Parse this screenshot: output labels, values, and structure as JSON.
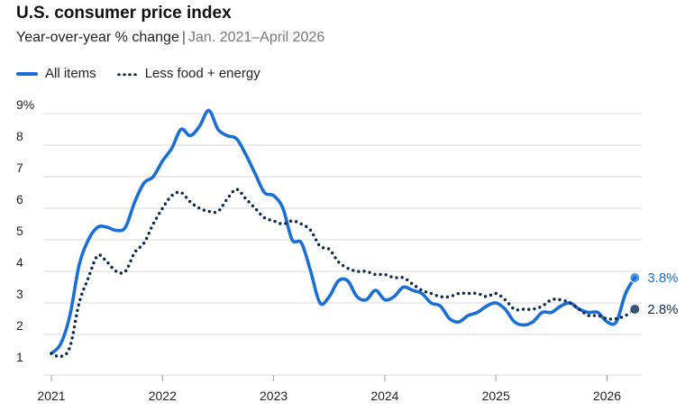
{
  "header": {
    "title": "U.S. consumer price index",
    "subtitle_main": "Year-over-year % change",
    "subtitle_sep": "|",
    "subtitle_range": "Jan. 2021–April 2026"
  },
  "colors": {
    "all_items": "#1a6fd6",
    "core": "#0d2a52",
    "grid": "#d9d9d9",
    "text": "#222222"
  },
  "chart_data": {
    "type": "line",
    "x_label": "",
    "y_label": "",
    "ylim": [
      1,
      9
    ],
    "y_ticks": [
      "1",
      "2",
      "3",
      "4",
      "5",
      "6",
      "7",
      "8",
      "9%"
    ],
    "x_ticks": [
      "2021",
      "2022",
      "2023",
      "2024",
      "2025",
      "2026"
    ],
    "grid": true,
    "legend_position": "top-left",
    "series": [
      {
        "name": "All items",
        "style": "solid",
        "end_label": "3.8%",
        "points": [
          [
            "2021-01",
            1.4
          ],
          [
            "2021-02",
            1.7
          ],
          [
            "2021-03",
            2.6
          ],
          [
            "2021-04",
            4.2
          ],
          [
            "2021-05",
            5.0
          ],
          [
            "2021-06",
            5.4
          ],
          [
            "2021-07",
            5.4
          ],
          [
            "2021-08",
            5.3
          ],
          [
            "2021-09",
            5.4
          ],
          [
            "2021-10",
            6.2
          ],
          [
            "2021-11",
            6.8
          ],
          [
            "2021-12",
            7.0
          ],
          [
            "2022-01",
            7.5
          ],
          [
            "2022-02",
            7.9
          ],
          [
            "2022-03",
            8.5
          ],
          [
            "2022-04",
            8.3
          ],
          [
            "2022-05",
            8.6
          ],
          [
            "2022-06",
            9.1
          ],
          [
            "2022-07",
            8.5
          ],
          [
            "2022-08",
            8.3
          ],
          [
            "2022-09",
            8.2
          ],
          [
            "2022-10",
            7.7
          ],
          [
            "2022-11",
            7.1
          ],
          [
            "2022-12",
            6.5
          ],
          [
            "2023-01",
            6.4
          ],
          [
            "2023-02",
            6.0
          ],
          [
            "2023-03",
            5.0
          ],
          [
            "2023-04",
            4.9
          ],
          [
            "2023-05",
            4.0
          ],
          [
            "2023-06",
            3.0
          ],
          [
            "2023-07",
            3.2
          ],
          [
            "2023-08",
            3.7
          ],
          [
            "2023-09",
            3.7
          ],
          [
            "2023-10",
            3.2
          ],
          [
            "2023-11",
            3.1
          ],
          [
            "2023-12",
            3.4
          ],
          [
            "2024-01",
            3.1
          ],
          [
            "2024-02",
            3.2
          ],
          [
            "2024-03",
            3.5
          ],
          [
            "2024-04",
            3.4
          ],
          [
            "2024-05",
            3.3
          ],
          [
            "2024-06",
            3.0
          ],
          [
            "2024-07",
            2.9
          ],
          [
            "2024-08",
            2.5
          ],
          [
            "2024-09",
            2.4
          ],
          [
            "2024-10",
            2.6
          ],
          [
            "2024-11",
            2.7
          ],
          [
            "2024-12",
            2.9
          ],
          [
            "2025-01",
            3.0
          ],
          [
            "2025-02",
            2.8
          ],
          [
            "2025-03",
            2.4
          ],
          [
            "2025-04",
            2.3
          ],
          [
            "2025-05",
            2.4
          ],
          [
            "2025-06",
            2.7
          ],
          [
            "2025-07",
            2.7
          ],
          [
            "2025-08",
            2.9
          ],
          [
            "2025-09",
            3.0
          ],
          [
            "2025-10",
            2.8
          ],
          [
            "2025-11",
            2.7
          ],
          [
            "2025-12",
            2.7
          ],
          [
            "2026-01",
            2.4
          ],
          [
            "2026-02",
            2.4
          ],
          [
            "2026-03",
            3.3
          ],
          [
            "2026-04",
            3.8
          ]
        ]
      },
      {
        "name": "Less food + energy",
        "style": "dotted",
        "end_label": "2.8%",
        "points": [
          [
            "2021-01",
            1.4
          ],
          [
            "2021-02",
            1.3
          ],
          [
            "2021-03",
            1.6
          ],
          [
            "2021-04",
            3.0
          ],
          [
            "2021-05",
            3.8
          ],
          [
            "2021-06",
            4.5
          ],
          [
            "2021-07",
            4.3
          ],
          [
            "2021-08",
            4.0
          ],
          [
            "2021-09",
            4.0
          ],
          [
            "2021-10",
            4.6
          ],
          [
            "2021-11",
            4.9
          ],
          [
            "2021-12",
            5.5
          ],
          [
            "2022-01",
            6.0
          ],
          [
            "2022-02",
            6.4
          ],
          [
            "2022-03",
            6.5
          ],
          [
            "2022-04",
            6.2
          ],
          [
            "2022-05",
            6.0
          ],
          [
            "2022-06",
            5.9
          ],
          [
            "2022-07",
            5.9
          ],
          [
            "2022-08",
            6.3
          ],
          [
            "2022-09",
            6.6
          ],
          [
            "2022-10",
            6.3
          ],
          [
            "2022-11",
            6.0
          ],
          [
            "2022-12",
            5.7
          ],
          [
            "2023-01",
            5.6
          ],
          [
            "2023-02",
            5.5
          ],
          [
            "2023-03",
            5.6
          ],
          [
            "2023-04",
            5.5
          ],
          [
            "2023-05",
            5.3
          ],
          [
            "2023-06",
            4.8
          ],
          [
            "2023-07",
            4.7
          ],
          [
            "2023-08",
            4.3
          ],
          [
            "2023-09",
            4.1
          ],
          [
            "2023-10",
            4.0
          ],
          [
            "2023-11",
            4.0
          ],
          [
            "2023-12",
            3.9
          ],
          [
            "2024-01",
            3.9
          ],
          [
            "2024-02",
            3.8
          ],
          [
            "2024-03",
            3.8
          ],
          [
            "2024-04",
            3.6
          ],
          [
            "2024-05",
            3.4
          ],
          [
            "2024-06",
            3.3
          ],
          [
            "2024-07",
            3.2
          ],
          [
            "2024-08",
            3.2
          ],
          [
            "2024-09",
            3.3
          ],
          [
            "2024-10",
            3.3
          ],
          [
            "2024-11",
            3.3
          ],
          [
            "2024-12",
            3.2
          ],
          [
            "2025-01",
            3.3
          ],
          [
            "2025-02",
            3.1
          ],
          [
            "2025-03",
            2.8
          ],
          [
            "2025-04",
            2.8
          ],
          [
            "2025-05",
            2.8
          ],
          [
            "2025-06",
            2.9
          ],
          [
            "2025-07",
            3.1
          ],
          [
            "2025-08",
            3.1
          ],
          [
            "2025-09",
            3.0
          ],
          [
            "2025-10",
            2.8
          ],
          [
            "2025-11",
            2.6
          ],
          [
            "2025-12",
            2.6
          ],
          [
            "2026-01",
            2.5
          ],
          [
            "2026-02",
            2.5
          ],
          [
            "2026-03",
            2.6
          ],
          [
            "2026-04",
            2.8
          ]
        ]
      }
    ]
  }
}
